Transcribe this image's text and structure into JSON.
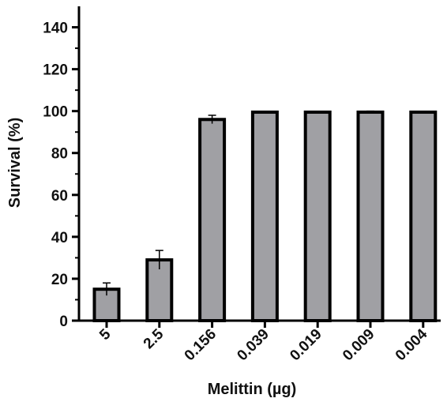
{
  "chart_data": {
    "type": "bar",
    "xlabel": "Melittin (µg)",
    "ylabel": "Survival (%)",
    "categories": [
      "5",
      "2.5",
      "0.156",
      "0.039",
      "0.019",
      "0.009",
      "0.004"
    ],
    "values": [
      15,
      29,
      96,
      99.5,
      99.5,
      99.5,
      99.5
    ],
    "error": [
      3,
      4.5,
      2,
      0,
      0,
      0.5,
      0
    ],
    "ylim": [
      0,
      150
    ],
    "yticks": [
      "0",
      "20",
      "40",
      "60",
      "80",
      "100",
      "120",
      "140"
    ],
    "grid": false,
    "legend": "none",
    "bar_color": "#a0a0a4",
    "bar_edge_color": "#000000"
  }
}
